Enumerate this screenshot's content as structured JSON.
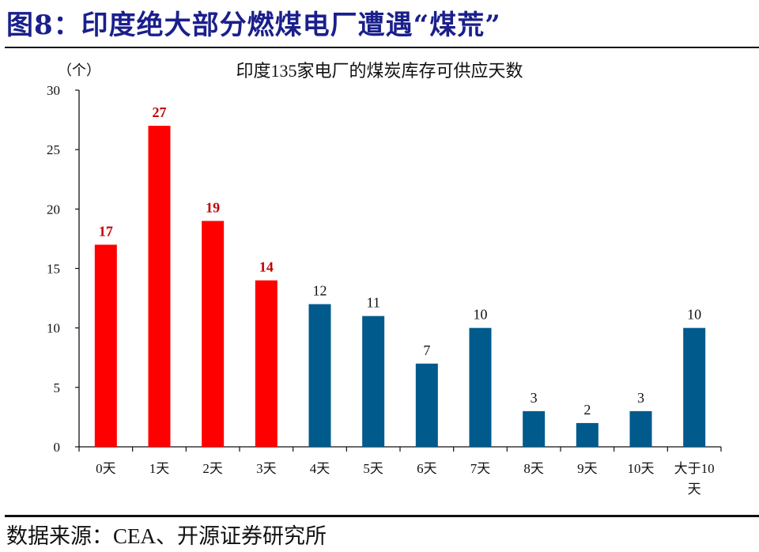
{
  "figure_title": "图8：印度绝大部分燃煤电厂遭遇“煤荒”",
  "source": "数据来源：CEA、开源证券研究所",
  "chart_data": {
    "type": "bar",
    "title": "印度135家电厂的煤炭库存可供应天数",
    "ylabel": "（个）",
    "xlabel": "",
    "ylim": [
      0,
      30
    ],
    "yticks": [
      0,
      5,
      10,
      15,
      20,
      25,
      30
    ],
    "categories": [
      "0天",
      "1天",
      "2天",
      "3天",
      "4天",
      "5天",
      "6天",
      "7天",
      "8天",
      "9天",
      "10天",
      "大于10天"
    ],
    "values": [
      17,
      27,
      19,
      14,
      12,
      11,
      7,
      10,
      3,
      2,
      3,
      10
    ],
    "highlight_count": 4,
    "colors": {
      "highlight": "#ff0000",
      "highlight_label": "#c00000",
      "normal": "#005a8c",
      "normal_label": "#111111",
      "title": "#1a1f8c"
    },
    "grid": false,
    "legend": "none"
  }
}
